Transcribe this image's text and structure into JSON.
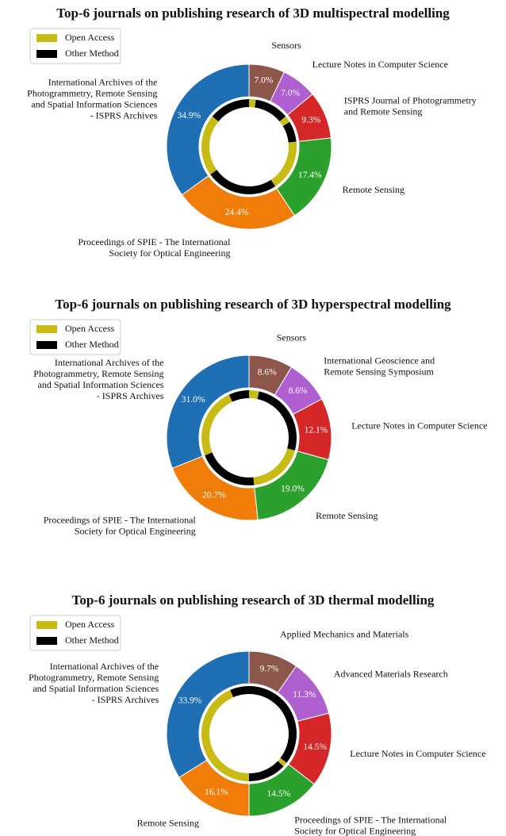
{
  "chart_data": [
    {
      "type": "donut",
      "title": "Top-6 journals on publishing research of 3D multispectral modelling",
      "categories": [
        "Sensors",
        "Lecture Notes in Computer Science",
        "ISPRS Journal of Photogrammetry\nand Remote Sensing",
        "Remote Sensing",
        "Proceedings of SPIE - The International\nSociety for Optical Engineering",
        "International Archives of the\nPhotogrammetry, Remote Sensing\nand Spatial Information Sciences\n- ISPRS Archives"
      ],
      "values": [
        7.0,
        7.0,
        9.3,
        17.4,
        24.4,
        34.9
      ],
      "value_labels": [
        "7.0%",
        "7.0%",
        "9.3%",
        "17.4%",
        "24.4%",
        "34.9%"
      ],
      "colors": [
        "#8c564b",
        "#b05fd0",
        "#d62728",
        "#2ca02c",
        "#f07d0a",
        "#1f6fb4"
      ],
      "series": [
        {
          "name": "Open Access",
          "color": "#c8bc14",
          "values": [
            2.3,
            0,
            2.3,
            17.4,
            0,
            20.9
          ]
        },
        {
          "name": "Other Method",
          "color": "#000000",
          "values": [
            4.7,
            7.0,
            7.0,
            0,
            24.4,
            14.0
          ]
        }
      ]
    },
    {
      "type": "donut",
      "title": "Top-6 journals on publishing research of 3D hyperspectral modelling",
      "categories": [
        "Sensors",
        "International Geoscience and\nRemote Sensing Symposium",
        "Lecture Notes in Computer Science",
        "Remote Sensing",
        "Proceedings of SPIE - The International\nSociety for Optical Engineering",
        "International Archives of the\nPhotogrammetry, Remote Sensing\nand Spatial Information Sciences\n- ISPRS Archives"
      ],
      "values": [
        8.6,
        8.6,
        12.1,
        19.0,
        20.7,
        31.0
      ],
      "value_labels": [
        "8.6%",
        "8.6%",
        "12.1%",
        "19.0%",
        "20.7%",
        "31.0%"
      ],
      "colors": [
        "#8c564b",
        "#b05fd0",
        "#d62728",
        "#2ca02c",
        "#f07d0a",
        "#1f6fb4"
      ],
      "series": [
        {
          "name": "Open Access",
          "color": "#c8bc14",
          "values": [
            3.4,
            0,
            0,
            19.0,
            0,
            24.1
          ]
        },
        {
          "name": "Other Method",
          "color": "#000000",
          "values": [
            5.2,
            8.6,
            12.1,
            0,
            20.7,
            6.9
          ]
        }
      ]
    },
    {
      "type": "donut",
      "title": "Top-6 journals on publishing research of 3D thermal modelling",
      "categories": [
        "Applied Mechanics and Materials",
        "Advanced Materials Research",
        "Lecture Notes in Computer Science",
        "Proceedings of SPIE - The International\nSociety for Optical Engineering",
        "Remote Sensing",
        "International Archives of the\nPhotogrammetry, Remote Sensing\nand Spatial Information Sciences\n- ISPRS Archives"
      ],
      "values": [
        9.7,
        11.3,
        14.5,
        14.5,
        16.1,
        33.9
      ],
      "value_labels": [
        "9.7%",
        "11.3%",
        "14.5%",
        "14.5%",
        "16.1%",
        "33.9%"
      ],
      "colors": [
        "#8c564b",
        "#b05fd0",
        "#d62728",
        "#2ca02c",
        "#f07d0a",
        "#1f6fb4"
      ],
      "series": [
        {
          "name": "Open Access",
          "color": "#c8bc14",
          "values": [
            0,
            0,
            0,
            1.6,
            16.1,
            27.4
          ]
        },
        {
          "name": "Other Method",
          "color": "#000000",
          "values": [
            9.7,
            11.3,
            14.5,
            12.9,
            0,
            6.5
          ]
        }
      ]
    }
  ]
}
